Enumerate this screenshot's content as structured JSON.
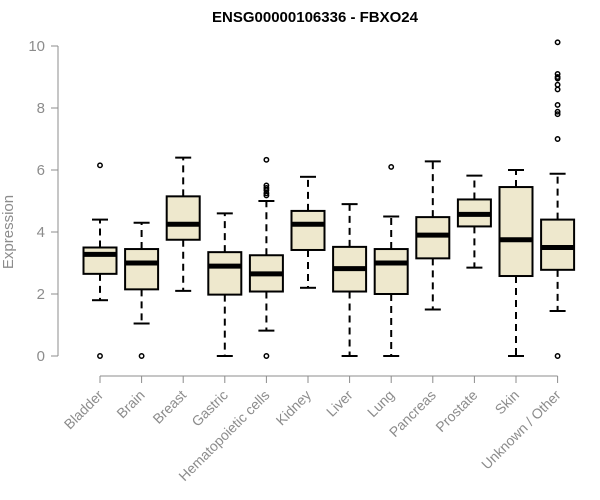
{
  "chart_data": {
    "type": "boxplot",
    "title": "ENSG00000106336 - FBXO24",
    "xlabel": "",
    "ylabel": "Expression",
    "ylim": [
      0,
      10.5
    ],
    "yticks": [
      0,
      2,
      4,
      6,
      8,
      10
    ],
    "grid": false,
    "legend": "none",
    "box_color": "#eee8cd",
    "line_color": "#000000",
    "categories": [
      "Bladder",
      "Brain",
      "Breast",
      "Gastric",
      "Hematopoietic cells",
      "Kidney",
      "Liver",
      "Lung",
      "Pancreas",
      "Prostate",
      "Skin",
      "Unknown / Other"
    ],
    "boxes": [
      {
        "whisker_low": 1.8,
        "q1": 2.65,
        "median": 3.28,
        "q3": 3.5,
        "whisker_high": 4.4,
        "outliers": [
          6.15,
          0.0
        ]
      },
      {
        "whisker_low": 1.05,
        "q1": 2.15,
        "median": 3.0,
        "q3": 3.45,
        "whisker_high": 4.3,
        "outliers": [
          0.0
        ]
      },
      {
        "whisker_low": 2.1,
        "q1": 3.75,
        "median": 4.25,
        "q3": 5.15,
        "whisker_high": 6.4,
        "outliers": []
      },
      {
        "whisker_low": 0.0,
        "q1": 1.98,
        "median": 2.9,
        "q3": 3.35,
        "whisker_high": 4.6,
        "outliers": []
      },
      {
        "whisker_low": 0.82,
        "q1": 2.08,
        "median": 2.65,
        "q3": 3.25,
        "whisker_high": 5.0,
        "outliers": [
          6.33,
          5.5,
          5.42,
          5.35,
          5.25,
          5.18,
          0.0
        ]
      },
      {
        "whisker_low": 2.2,
        "q1": 3.42,
        "median": 4.25,
        "q3": 4.68,
        "whisker_high": 5.78,
        "outliers": []
      },
      {
        "whisker_low": 0.0,
        "q1": 2.08,
        "median": 2.82,
        "q3": 3.52,
        "whisker_high": 4.9,
        "outliers": []
      },
      {
        "whisker_low": 0.0,
        "q1": 2.0,
        "median": 3.0,
        "q3": 3.45,
        "whisker_high": 4.5,
        "outliers": [
          6.1
        ]
      },
      {
        "whisker_low": 1.5,
        "q1": 3.15,
        "median": 3.9,
        "q3": 4.48,
        "whisker_high": 6.28,
        "outliers": []
      },
      {
        "whisker_low": 2.85,
        "q1": 4.18,
        "median": 4.57,
        "q3": 5.05,
        "whisker_high": 5.82,
        "outliers": []
      },
      {
        "whisker_low": 0.0,
        "q1": 2.58,
        "median": 3.75,
        "q3": 5.45,
        "whisker_high": 6.0,
        "outliers": []
      },
      {
        "whisker_low": 1.45,
        "q1": 2.78,
        "median": 3.5,
        "q3": 4.4,
        "whisker_high": 5.88,
        "outliers": [
          10.12,
          9.1,
          9.0,
          8.95,
          8.75,
          8.6,
          8.1,
          7.88,
          7.8,
          7.0,
          0.0
        ]
      }
    ]
  }
}
